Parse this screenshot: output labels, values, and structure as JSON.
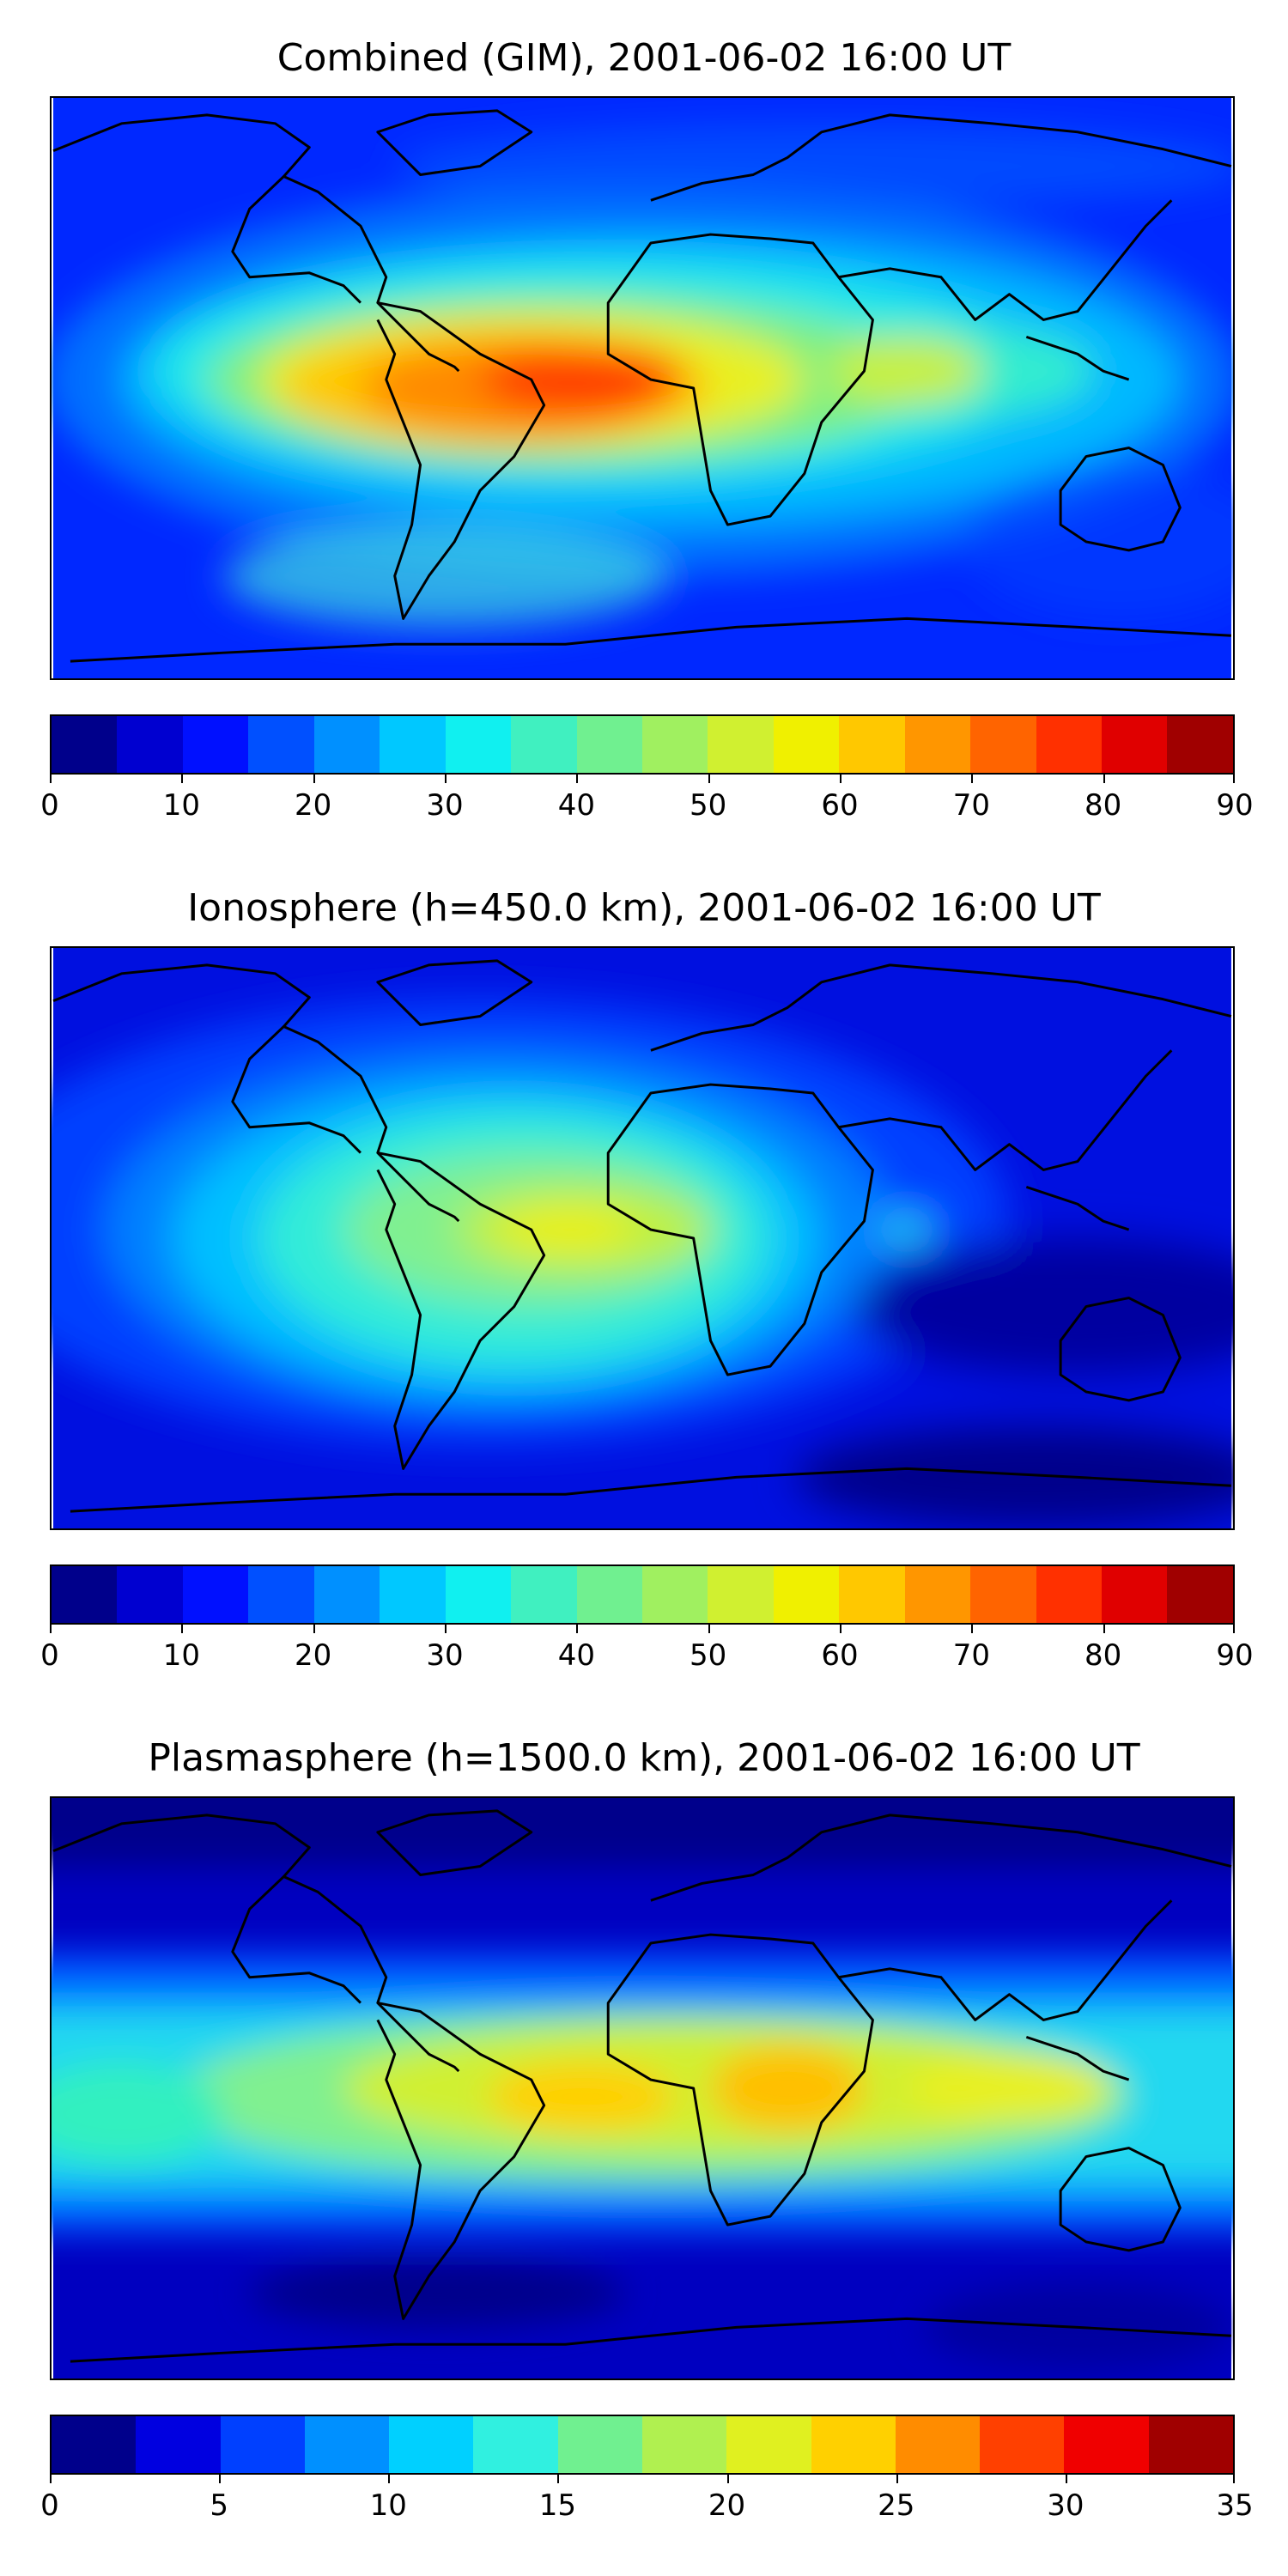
{
  "figure": {
    "maps": [
      {
        "title": "Combined (GIM), 2001-06-02 16:00 UT",
        "colorbar": {
          "ticks": [
            "0",
            "10",
            "20",
            "30",
            "40",
            "50",
            "60",
            "70",
            "80",
            "90"
          ],
          "min": 0,
          "max": 90,
          "colors": [
            "#00008b",
            "#0000d0",
            "#0010ff",
            "#0050ff",
            "#0090ff",
            "#00c8ff",
            "#10f0f0",
            "#40f0c0",
            "#70f090",
            "#a0f060",
            "#d0f030",
            "#f0f000",
            "#ffc800",
            "#ff9600",
            "#ff6400",
            "#ff3000",
            "#e00000",
            "#a00000"
          ]
        }
      },
      {
        "title": "Ionosphere  (h=450.0 km), 2001-06-02 16:00 UT",
        "colorbar": {
          "ticks": [
            "0",
            "10",
            "20",
            "30",
            "40",
            "50",
            "60",
            "70",
            "80",
            "90"
          ],
          "min": 0,
          "max": 90,
          "colors": [
            "#00008b",
            "#0000d0",
            "#0010ff",
            "#0050ff",
            "#0090ff",
            "#00c8ff",
            "#10f0f0",
            "#40f0c0",
            "#70f090",
            "#a0f060",
            "#d0f030",
            "#f0f000",
            "#ffc800",
            "#ff9600",
            "#ff6400",
            "#ff3000",
            "#e00000",
            "#a00000"
          ]
        }
      },
      {
        "title": "Plasmasphere (h=1500.0 km), 2001-06-02 16:00 UT",
        "colorbar": {
          "ticks": [
            "0",
            "5",
            "10",
            "15",
            "20",
            "25",
            "30",
            "35"
          ],
          "min": 0,
          "max": 35,
          "colors": [
            "#00008b",
            "#0000e0",
            "#0040ff",
            "#0090ff",
            "#00d0ff",
            "#30f0e0",
            "#70f090",
            "#b0f050",
            "#e0f020",
            "#ffd000",
            "#ff8c00",
            "#ff4000",
            "#f00000",
            "#a00000"
          ]
        }
      }
    ]
  }
}
